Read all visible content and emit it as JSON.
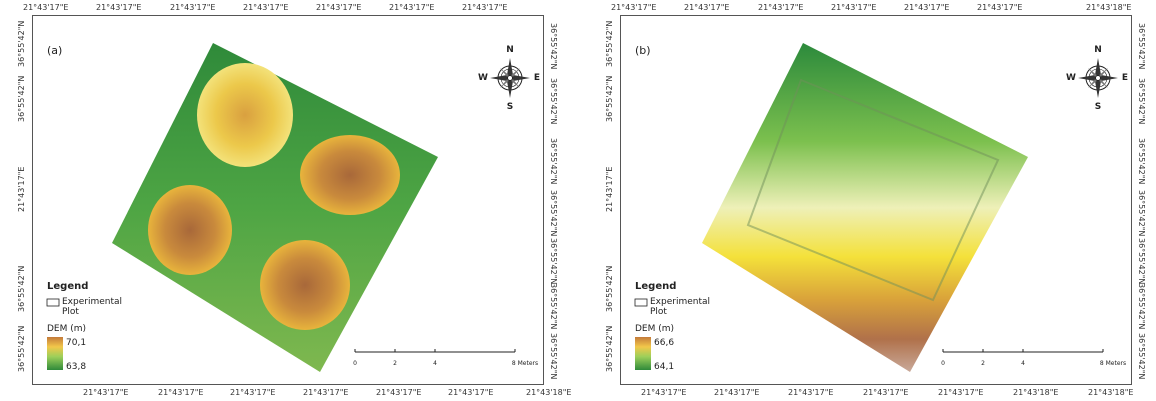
{
  "panels": [
    {
      "label": "(a)",
      "top_labels": [
        "21°43'17\"E",
        "21°43'17\"E",
        "21°43'17\"E",
        "21°43'17\"E",
        "21°43'17\"E",
        "21°43'17\"E",
        "21°43'17\"E"
      ],
      "bottom_labels": [
        "21°43'17\"E",
        "21°43'17\"E",
        "21°43'17\"E",
        "21°43'17\"E",
        "21°43'17\"E",
        "21°43'17\"E",
        "21°43'18\"E"
      ],
      "left_labels": [
        "36°55'42\"N",
        "36°55'42\"N",
        "21°43'17\"E",
        "36°55'42\"N",
        "36°55'42\"N"
      ],
      "right_labels": [
        "36°55'42\"N",
        "36°55'42\"N",
        "36°55'42\"N",
        "36°55'42\"N",
        "36°55'42\"N",
        "36°55'42\"N",
        "36°55'42\"N"
      ],
      "legend": {
        "title": "Legend",
        "plot": "Experimental Plot",
        "dem_title": "DEM (m)",
        "max": "70,1",
        "min": "63,8"
      },
      "scale": [
        "0",
        "2",
        "4",
        "8 Meters"
      ],
      "compass": {
        "n": "N",
        "e": "E",
        "s": "S",
        "w": "W"
      }
    },
    {
      "label": "(b)",
      "top_labels": [
        "21°43'17\"E",
        "21°43'17\"E",
        "21°43'17\"E",
        "21°43'17\"E",
        "21°43'17\"E",
        "21°43'17\"E",
        "21°43'18\"E"
      ],
      "bottom_labels": [
        "21°43'17\"E",
        "21°43'17\"E",
        "21°43'17\"E",
        "21°43'17\"E",
        "21°43'17\"E",
        "21°43'18\"E",
        "21°43'18\"E"
      ],
      "left_labels": [
        "36°55'42\"N",
        "36°55'42\"N",
        "21°43'17\"E",
        "36°55'42\"N",
        "36°55'42\"N"
      ],
      "right_labels": [
        "36°55'42\"N",
        "36°55'42\"N",
        "36°55'42\"N",
        "36°55'42\"N",
        "36°55'42\"N",
        "36°55'42\"N",
        "36°55'42\"N"
      ],
      "legend": {
        "title": "Legend",
        "plot": "Experimental Plot",
        "dem_title": "DEM (m)",
        "max": "66,6",
        "min": "64,1"
      },
      "scale": [
        "0",
        "2",
        "4",
        "8 Meters"
      ],
      "compass": {
        "n": "N",
        "e": "E",
        "s": "S",
        "w": "W"
      }
    }
  ]
}
